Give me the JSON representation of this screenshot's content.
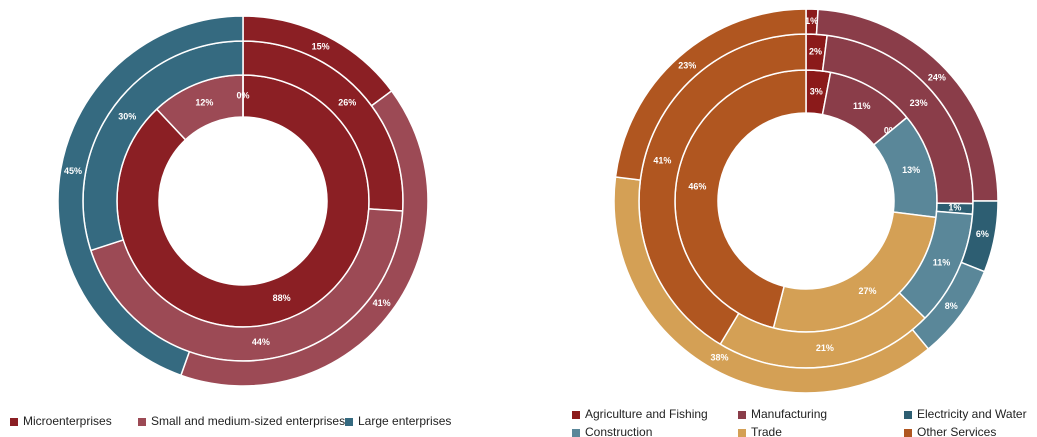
{
  "chart_data": [
    {
      "type": "donut",
      "categories": [
        "Microenterprises",
        "Small and medium-sized enterprises",
        "Large enterprises"
      ],
      "colors": [
        "#8b1f24",
        "#9c4a55",
        "#356a80"
      ],
      "rings": [
        {
          "values": [
            88,
            12,
            0
          ],
          "value_labels": [
            "88%",
            "12%",
            "0%"
          ]
        },
        {
          "values": [
            26,
            44,
            30
          ],
          "value_labels": [
            "26%",
            "44%",
            "30%"
          ]
        },
        {
          "values": [
            15,
            41,
            45
          ],
          "value_labels": [
            "15%",
            "41%",
            "45%"
          ]
        }
      ],
      "legend": "bottom"
    },
    {
      "type": "donut",
      "categories": [
        "Agriculture and Fishing",
        "Manufacturing",
        "Electricity and Water",
        "Construction",
        "Trade",
        "Other Services"
      ],
      "colors": [
        "#8b1a1a",
        "#8a3d49",
        "#2d5e72",
        "#5a8799",
        "#d4a055",
        "#b05620"
      ],
      "rings": [
        {
          "values": [
            3,
            11,
            0,
            13,
            27,
            46
          ],
          "value_labels": [
            "3%",
            "11%",
            "0%",
            "13%",
            "27%",
            "46%"
          ]
        },
        {
          "values": [
            2,
            23,
            1,
            11,
            21,
            41
          ],
          "value_labels": [
            "2%",
            "23%",
            "1%",
            "11%",
            "21%",
            "41%"
          ]
        },
        {
          "values": [
            1,
            24,
            6,
            8,
            38,
            23
          ],
          "value_labels": [
            "1%",
            "24%",
            "6%",
            "8%",
            "38%",
            "23%"
          ]
        }
      ],
      "legend": "bottom"
    }
  ]
}
